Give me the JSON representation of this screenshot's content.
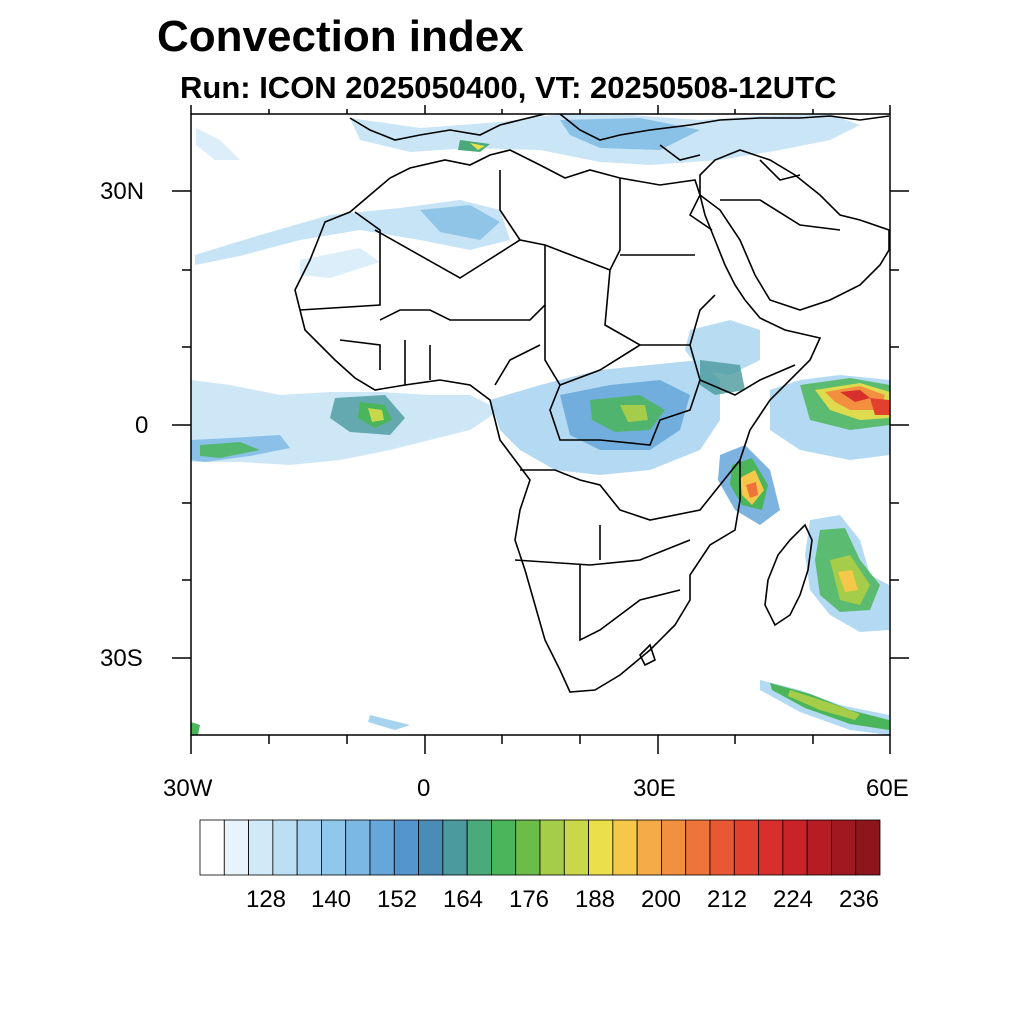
{
  "title": "Convection index",
  "subtitle": "Run: ICON 2025050400,  VT: 20250508-12UTC",
  "axes": {
    "lat_labels": [
      "30N",
      "0",
      "30S"
    ],
    "lon_labels": [
      "30W",
      "0",
      "30E",
      "60E"
    ]
  },
  "colorbar": {
    "colors": [
      "#ffffff",
      "#e8f4fb",
      "#d2eaf8",
      "#bcdff4",
      "#a6d4f0",
      "#90c8ec",
      "#7bb8e3",
      "#66a6d9",
      "#5595cd",
      "#4a8bb8",
      "#4a9a9e",
      "#4aaa7a",
      "#4ab55a",
      "#6cbc4a",
      "#a6cd4a",
      "#c8d84a",
      "#ece04a",
      "#f5c84a",
      "#f5ac48",
      "#f39040",
      "#ef743a",
      "#e95834",
      "#e2402e",
      "#d82e2c",
      "#c92228",
      "#b51c24",
      "#a01820",
      "#8c161c"
    ],
    "tick_labels": [
      "128",
      "140",
      "152",
      "164",
      "176",
      "188",
      "200",
      "212",
      "224",
      "236"
    ]
  },
  "map": {
    "extent": {
      "lon_min": -30,
      "lon_max": 60,
      "lat_min": -40,
      "lat_max": 40
    }
  }
}
